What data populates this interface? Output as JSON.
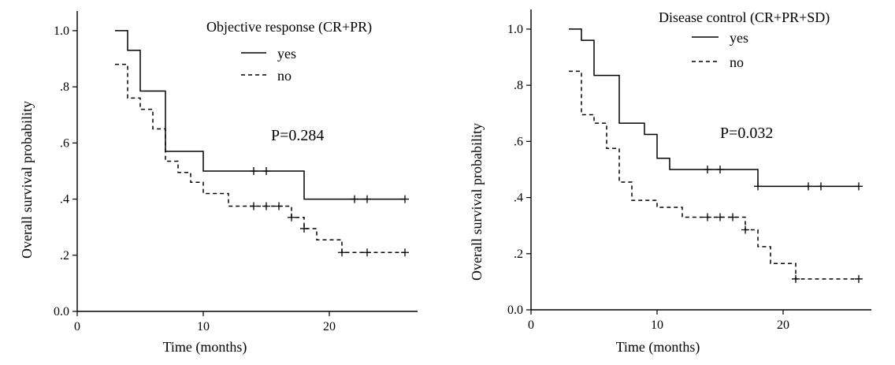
{
  "chart_data": [
    {
      "type": "line",
      "step": true,
      "title": "",
      "xlabel": "Time (months)",
      "ylabel": "Overall survival probability",
      "xlim": [
        0,
        27
      ],
      "ylim": [
        0,
        1.07
      ],
      "xticks": [
        0,
        10,
        20
      ],
      "yticks": [
        {
          "value": 0.0,
          "label": "0.0"
        },
        {
          "value": 0.2,
          "label": ".2"
        },
        {
          "value": 0.4,
          "label": ".4"
        },
        {
          "value": 0.6,
          "label": ".6"
        },
        {
          "value": 0.8,
          "label": ".8"
        },
        {
          "value": 1.0,
          "label": "1.0"
        }
      ],
      "legend_title": "Objective response (CR+PR)",
      "legend_position": "top-right",
      "annotation": "P=0.284",
      "series": [
        {
          "name": "yes",
          "style": "solid",
          "steps": [
            [
              3,
              1.0
            ],
            [
              4,
              0.93
            ],
            [
              5,
              0.785
            ],
            [
              7,
              0.57
            ],
            [
              10,
              0.5
            ],
            [
              18,
              0.4
            ],
            [
              26,
              0.4
            ]
          ],
          "censored": [
            [
              14,
              0.5
            ],
            [
              15,
              0.5
            ],
            [
              22,
              0.4
            ],
            [
              23,
              0.4
            ],
            [
              26,
              0.4
            ]
          ]
        },
        {
          "name": "no",
          "style": "dashed",
          "steps": [
            [
              3,
              0.88
            ],
            [
              4,
              0.76
            ],
            [
              5,
              0.72
            ],
            [
              6,
              0.65
            ],
            [
              7,
              0.535
            ],
            [
              8,
              0.495
            ],
            [
              9,
              0.46
            ],
            [
              10,
              0.42
            ],
            [
              12,
              0.375
            ],
            [
              17,
              0.335
            ],
            [
              18,
              0.295
            ],
            [
              19,
              0.255
            ],
            [
              21,
              0.21
            ],
            [
              26,
              0.21
            ]
          ],
          "censored": [
            [
              14,
              0.375
            ],
            [
              15,
              0.375
            ],
            [
              16,
              0.375
            ],
            [
              17,
              0.335
            ],
            [
              18,
              0.295
            ],
            [
              21,
              0.21
            ],
            [
              23,
              0.21
            ],
            [
              26,
              0.21
            ]
          ]
        }
      ]
    },
    {
      "type": "line",
      "step": true,
      "title": "",
      "xlabel": "Time (months)",
      "ylabel": "Overall survival probability",
      "xlim": [
        0,
        27
      ],
      "ylim": [
        0,
        1.07
      ],
      "xticks": [
        0,
        10,
        20
      ],
      "yticks": [
        {
          "value": 0.0,
          "label": "0.0"
        },
        {
          "value": 0.2,
          "label": ".2"
        },
        {
          "value": 0.4,
          "label": ".4"
        },
        {
          "value": 0.6,
          "label": ".6"
        },
        {
          "value": 0.8,
          "label": ".8"
        },
        {
          "value": 1.0,
          "label": "1.0"
        }
      ],
      "legend_title": "Disease control (CR+PR+SD)",
      "legend_position": "top-right",
      "annotation": "P=0.032",
      "series": [
        {
          "name": "yes",
          "style": "solid",
          "steps": [
            [
              3,
              1.0
            ],
            [
              4,
              0.96
            ],
            [
              5,
              0.835
            ],
            [
              7,
              0.665
            ],
            [
              9,
              0.625
            ],
            [
              10,
              0.54
            ],
            [
              11,
              0.5
            ],
            [
              18,
              0.44
            ],
            [
              26,
              0.44
            ]
          ],
          "censored": [
            [
              14,
              0.5
            ],
            [
              15,
              0.5
            ],
            [
              18,
              0.44
            ],
            [
              22,
              0.44
            ],
            [
              23,
              0.44
            ],
            [
              26,
              0.44
            ]
          ]
        },
        {
          "name": "no",
          "style": "dashed",
          "steps": [
            [
              3,
              0.85
            ],
            [
              4,
              0.695
            ],
            [
              5,
              0.665
            ],
            [
              6,
              0.575
            ],
            [
              7,
              0.455
            ],
            [
              8,
              0.39
            ],
            [
              10,
              0.365
            ],
            [
              12,
              0.33
            ],
            [
              17,
              0.285
            ],
            [
              18,
              0.225
            ],
            [
              19,
              0.165
            ],
            [
              21,
              0.11
            ],
            [
              26,
              0.11
            ]
          ],
          "censored": [
            [
              14,
              0.33
            ],
            [
              15,
              0.33
            ],
            [
              16,
              0.33
            ],
            [
              17,
              0.285
            ],
            [
              21,
              0.11
            ],
            [
              26,
              0.11
            ]
          ]
        }
      ]
    }
  ]
}
